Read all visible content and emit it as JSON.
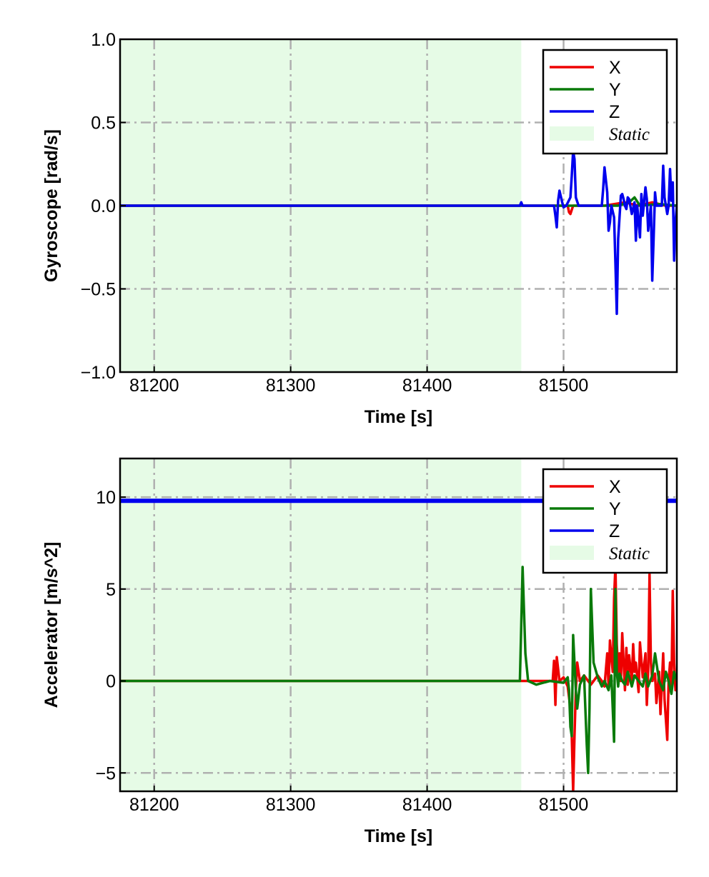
{
  "chart_data": [
    {
      "type": "line",
      "ylabel": "Gyroscope [rad/s]",
      "xlabel": "Time [s]",
      "xlim": [
        81175,
        81583
      ],
      "ylim": [
        -1.0,
        1.0
      ],
      "xticks": [
        81200,
        81300,
        81400,
        81500
      ],
      "xtick_labels": [
        "81200",
        "81300",
        "81400",
        "81500"
      ],
      "yticks": [
        -1.0,
        -0.5,
        0.0,
        0.5,
        1.0
      ],
      "ytick_labels": [
        "−1.0",
        "−0.5",
        "0.0",
        "0.5",
        "1.0"
      ],
      "grid": true,
      "legend_position": "top-right",
      "static_region": {
        "label": "Static",
        "x_start": 81175,
        "x_end": 81469,
        "color": "#e6fbe6"
      },
      "series": [
        {
          "name": "X",
          "color": "#ee0000",
          "x": [
            81175,
            81469,
            81495,
            81503,
            81504,
            81505,
            81507,
            81510,
            81530,
            81545,
            81555,
            81565,
            81575,
            81583
          ],
          "y": [
            0.0,
            0.0,
            0.0,
            0.0,
            -0.04,
            -0.05,
            0.0,
            0.0,
            0.0,
            0.02,
            0.0,
            0.02,
            0.0,
            0.0
          ]
        },
        {
          "name": "Y",
          "color": "#0a7a0a",
          "x": [
            81175,
            81469,
            81500,
            81520,
            81540,
            81548,
            81552,
            81556,
            81570,
            81583
          ],
          "y": [
            0.0,
            0.0,
            0.0,
            0.0,
            0.0,
            0.02,
            0.05,
            0.0,
            0.01,
            0.0
          ]
        },
        {
          "name": "Z",
          "color": "#0000ee",
          "x": [
            81175,
            81468,
            81469,
            81470,
            81472,
            81493,
            81494,
            81495,
            81496,
            81497,
            81499,
            81500,
            81502,
            81505,
            81506,
            81507,
            81508,
            81509,
            81511,
            81514,
            81520,
            81528,
            81529,
            81530,
            81532,
            81533,
            81534,
            81535,
            81537,
            81538,
            81539,
            81540,
            81542,
            81543,
            81544,
            81545,
            81546,
            81547,
            81548,
            81550,
            81552,
            81553,
            81554,
            81556,
            81557,
            81558,
            81560,
            81561,
            81562,
            81564,
            81565,
            81566,
            81567,
            81568,
            81570,
            81572,
            81573,
            81574,
            81576,
            81577,
            81578,
            81579,
            81580,
            81581,
            81582,
            81583
          ],
          "y": [
            0.0,
            0.0,
            0.02,
            0.0,
            0.0,
            0.0,
            -0.06,
            -0.13,
            0.03,
            0.09,
            0.02,
            -0.01,
            0.0,
            0.05,
            0.18,
            0.33,
            0.28,
            0.05,
            0.0,
            0.0,
            0.0,
            0.0,
            0.1,
            0.23,
            0.08,
            -0.15,
            -0.1,
            0.0,
            -0.07,
            -0.35,
            -0.65,
            -0.2,
            0.06,
            0.07,
            0.04,
            0.0,
            -0.02,
            0.05,
            0.04,
            -0.05,
            0.02,
            -0.21,
            0.0,
            -0.19,
            0.07,
            -0.06,
            0.11,
            0.04,
            -0.15,
            0.0,
            -0.45,
            -0.2,
            0.08,
            0.0,
            0.0,
            0.0,
            0.24,
            0.05,
            -0.05,
            0.0,
            0.22,
            0.03,
            0.14,
            -0.33,
            -0.1,
            0.0
          ]
        }
      ]
    },
    {
      "type": "line",
      "ylabel": "Accelerator [m/s^2]",
      "xlabel": "Time [s]",
      "xlim": [
        81175,
        81583
      ],
      "ylim": [
        -6,
        12.1
      ],
      "xticks": [
        81200,
        81300,
        81400,
        81500
      ],
      "xtick_labels": [
        "81200",
        "81300",
        "81400",
        "81500"
      ],
      "yticks": [
        -5,
        0,
        5,
        10
      ],
      "ytick_labels": [
        "−5",
        "0",
        "5",
        "10"
      ],
      "grid": true,
      "legend_position": "top-right",
      "static_region": {
        "label": "Static",
        "x_start": 81175,
        "x_end": 81469,
        "color": "#e6fbe6"
      },
      "series": [
        {
          "name": "X",
          "color": "#ee0000",
          "x": [
            81175,
            81469,
            81492,
            81493,
            81494,
            81495,
            81497,
            81500,
            81503,
            81505,
            81506,
            81507,
            81508,
            81509,
            81510,
            81512,
            81515,
            81520,
            81525,
            81528,
            81530,
            81532,
            81533,
            81534,
            81536,
            81537,
            81538,
            81539,
            81540,
            81541,
            81542,
            81543,
            81545,
            81546,
            81547,
            81548,
            81550,
            81551,
            81552,
            81553,
            81555,
            81556,
            81558,
            81560,
            81561,
            81562,
            81563,
            81564,
            81565,
            81567,
            81568,
            81570,
            81571,
            81572,
            81573,
            81574,
            81576,
            81577,
            81578,
            81579,
            81580,
            81581,
            81582,
            81583
          ],
          "y": [
            0.0,
            0.0,
            0.0,
            1.1,
            -1.3,
            1.3,
            0.0,
            0.2,
            -0.3,
            -1.5,
            -3.0,
            -6.0,
            -3.0,
            -0.5,
            1.0,
            0.0,
            0.3,
            -0.2,
            0.3,
            0.0,
            -0.3,
            1.5,
            -0.3,
            2.2,
            0.5,
            4.5,
            6.3,
            2.0,
            0.5,
            1.5,
            0.0,
            2.6,
            -0.5,
            1.8,
            -0.2,
            1.4,
            0.0,
            2.0,
            0.5,
            1.0,
            -0.6,
            2.1,
            0.2,
            1.5,
            -1.3,
            0.5,
            5.8,
            1.0,
            0.0,
            0.4,
            -1.2,
            0.5,
            -1.8,
            -0.2,
            1.5,
            -1.0,
            -3.2,
            0.0,
            1.0,
            -0.5,
            4.9,
            1.0,
            -0.5,
            0.0
          ]
        },
        {
          "name": "Y",
          "color": "#0a7a0a",
          "x": [
            81175,
            81468,
            81469,
            81470,
            81472,
            81474,
            81480,
            81490,
            81500,
            81503,
            81504,
            81505,
            81506,
            81507,
            81508,
            81509,
            81510,
            81512,
            81515,
            81517,
            81518,
            81519,
            81520,
            81522,
            81525,
            81528,
            81530,
            81533,
            81535,
            81536,
            81537,
            81538,
            81539,
            81540,
            81541,
            81543,
            81545,
            81547,
            81550,
            81552,
            81555,
            81558,
            81560,
            81562,
            81565,
            81567,
            81570,
            81573,
            81575,
            81577,
            81579,
            81581,
            81583
          ],
          "y": [
            0.0,
            0.0,
            3.0,
            6.2,
            1.5,
            0.0,
            -0.2,
            0.0,
            -0.1,
            0.2,
            -0.5,
            -2.5,
            -3.0,
            2.5,
            1.0,
            -0.5,
            -1.5,
            -0.2,
            0.3,
            -3.5,
            -5.0,
            -1.5,
            5.0,
            1.0,
            0.2,
            -0.3,
            0.0,
            -0.5,
            0.3,
            -1.5,
            -3.3,
            5.0,
            0.5,
            -0.3,
            0.4,
            0.0,
            -0.2,
            0.5,
            -0.3,
            0.3,
            0.0,
            -0.3,
            0.4,
            -0.3,
            0.3,
            1.5,
            0.0,
            -0.5,
            0.5,
            0.0,
            -0.7,
            0.5,
            0.0
          ]
        },
        {
          "name": "Z",
          "color": "#0000ee",
          "x": [
            81175,
            81250,
            81350,
            81450,
            81583
          ],
          "y": [
            9.8,
            9.8,
            9.8,
            9.8,
            9.8
          ]
        }
      ]
    }
  ]
}
